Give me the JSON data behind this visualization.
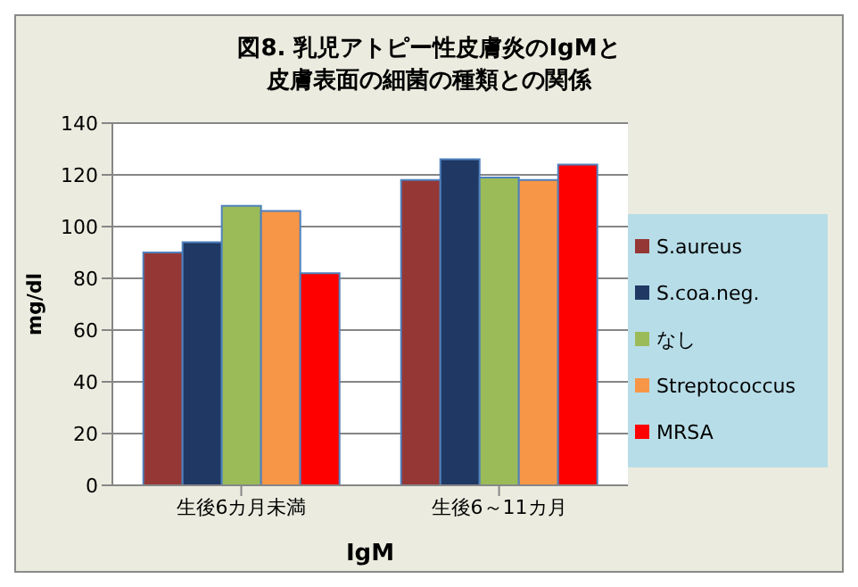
{
  "chart_data": {
    "type": "bar",
    "title": "図8. 乳児アトピー性皮膚炎のIgMと皮膚表面の細菌の種類との関係",
    "xlabel": "IgM",
    "ylabel": "mg/dl",
    "categories": [
      "生後6カ月未満",
      "生後6～11カ月"
    ],
    "series": [
      {
        "name": "S.aureus",
        "color": "#953735",
        "values": [
          90,
          118
        ]
      },
      {
        "name": "S.coa.neg.",
        "color": "#1f3864",
        "values": [
          94,
          126
        ]
      },
      {
        "name": "なし",
        "color": "#9bbb59",
        "values": [
          108,
          119
        ]
      },
      {
        "name": "Streptococcus",
        "color": "#f79646",
        "values": [
          106,
          118
        ]
      },
      {
        "name": "MRSA",
        "color": "#ff0000",
        "values": [
          82,
          124
        ]
      }
    ],
    "ylim": [
      0,
      140
    ],
    "yticks": [
      0,
      20,
      40,
      60,
      80,
      100,
      120,
      140
    ],
    "grid": "y",
    "legend": "right"
  }
}
